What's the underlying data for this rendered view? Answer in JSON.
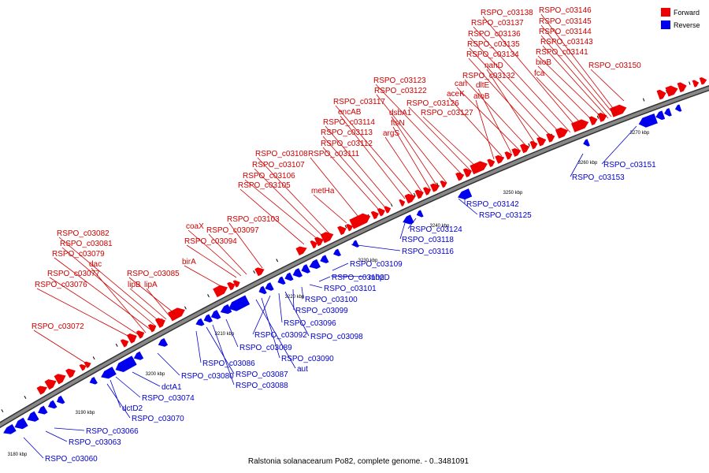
{
  "caption": "Ralstonia solanacearum Po82, complete genome. - 0..3481091",
  "legend": [
    {
      "label": "Forward",
      "color": "#ee0000"
    },
    {
      "label": "Reverse",
      "color": "#0000ee"
    }
  ],
  "colors": {
    "forward": "#ee0000",
    "reverse": "#0000ee",
    "axis": "#888888"
  },
  "ticks": [
    "3180 kbp",
    "3190 kbp",
    "3200 kbp",
    "3210 kbp",
    "3220 kbp",
    "3230 kbp",
    "3240 kbp",
    "3250 kbp",
    "3260 kbp",
    "3270 kbp"
  ],
  "forward_labels": [
    "RSPO_c03072",
    "RSPO_c03076",
    "RSPO_c03077",
    "dac",
    "RSPO_c03079",
    "RSPO_c03081",
    "RSPO_c03082",
    "lipB",
    "lipA",
    "RSPO_c03085",
    "birA",
    "RSPO_c03094",
    "coaX",
    "RSPO_c03097",
    "RSPO_c03103",
    "RSPO_c03105",
    "RSPO_c03106",
    "RSPO_c03107",
    "RSPO_c03108",
    "metHa",
    "RSPO_c03111",
    "RSPO_c03112",
    "RSPO_c03113",
    "RSPO_c03114",
    "encAB",
    "RSPO_c03117",
    "argS",
    "ftsN",
    "dsbA1",
    "RSPO_c03122",
    "RSPO_c03123",
    "RSPO_c03126",
    "RSPO_c03127",
    "atoB",
    "aceK",
    "dltE",
    "can",
    "RSPO_c03132",
    "nahD",
    "RSPO_c03134",
    "RSPO_c03135",
    "RSPO_c03136",
    "RSPO_c03137",
    "RSPO_c03138",
    "fca",
    "bioB",
    "RSPO_c03141",
    "RSPO_c03143",
    "RSPO_c03144",
    "RSPO_c03145",
    "RSPO_c03146",
    "RSPO_c03150"
  ],
  "reverse_labels": [
    "RSPO_c03060",
    "RSPO_c03063",
    "RSPO_c03066",
    "RSPO_c03070",
    "dctD2",
    "RSPO_c03074",
    "dctA1",
    "RSPO_c03080",
    "RSPO_c03086",
    "RSPO_c03087",
    "RSPO_c03088",
    "RSPO_c03089",
    "aut",
    "RSPO_c03090",
    "RSPO_c03092",
    "RSPO_c03096",
    "RSPO_c03098",
    "RSPO_c03099",
    "RSPO_c03100",
    "RSPO_c03101",
    "RSPO_c03102",
    "mhpD",
    "RSPO_c03109",
    "RSPO_c03116",
    "RSPO_c03118",
    "RSPO_c03124",
    "RSPO_c03125",
    "RSPO_c03142",
    "RSPO_c03153",
    "RSPO_c03151"
  ]
}
